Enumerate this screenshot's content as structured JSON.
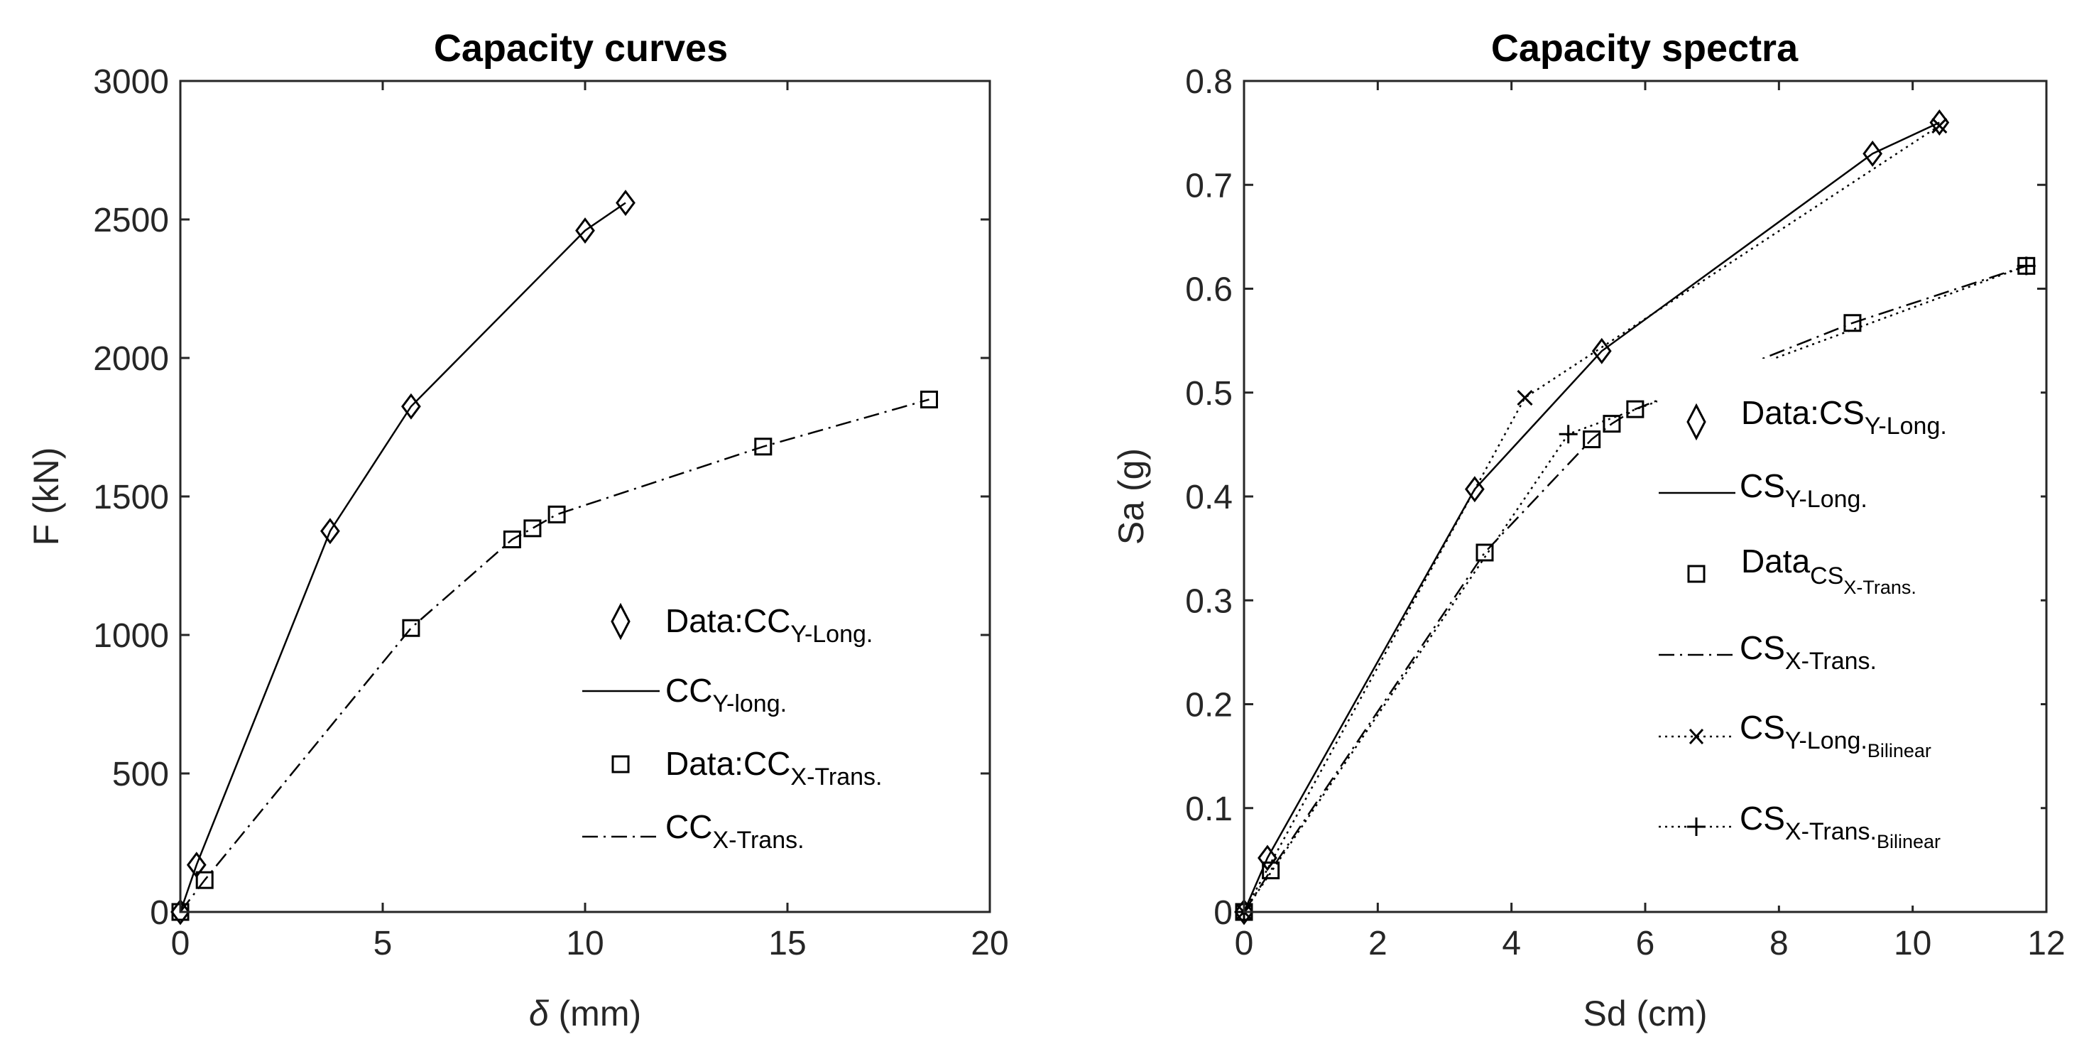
{
  "chart_data": [
    {
      "type": "line",
      "title": "Capacity curves",
      "xlabel_symbol": "δ",
      "xlabel": " (mm)",
      "ylabel": "F (kN)",
      "xlim": [
        0,
        20
      ],
      "ylim": [
        0,
        3000
      ],
      "xticks": [
        0,
        5,
        10,
        15,
        20
      ],
      "yticks": [
        0,
        500,
        1000,
        1500,
        2000,
        2500,
        3000
      ],
      "legend_position": "lower-right",
      "series": [
        {
          "name": "Data:CC Y-Long.",
          "style": "marker-diamond",
          "x": [
            0,
            0.4,
            3.7,
            5.7,
            10.0,
            11.0
          ],
          "y": [
            0,
            170,
            1375,
            1825,
            2460,
            2560
          ]
        },
        {
          "name": "CC Y-long.",
          "style": "solid",
          "x": [
            0,
            0.4,
            3.7,
            5.7,
            10.0,
            11.0
          ],
          "y": [
            0,
            170,
            1375,
            1825,
            2460,
            2560
          ]
        },
        {
          "name": "Data:CC X-Trans.",
          "style": "marker-square",
          "x": [
            0,
            0.6,
            5.7,
            8.2,
            8.7,
            9.3,
            14.4,
            18.5
          ],
          "y": [
            0,
            115,
            1025,
            1345,
            1385,
            1435,
            1680,
            1850
          ]
        },
        {
          "name": "CC X-Trans.",
          "style": "dashdot",
          "x": [
            0,
            0.6,
            5.7,
            8.2,
            8.7,
            9.3,
            14.4,
            18.5
          ],
          "y": [
            0,
            115,
            1025,
            1345,
            1385,
            1435,
            1680,
            1850
          ]
        }
      ],
      "legend": [
        {
          "main": "Data:CC",
          "sub": "Y-Long."
        },
        {
          "main": "CC",
          "sub": "Y-long."
        },
        {
          "main": "Data:CC",
          "sub": "X-Trans."
        },
        {
          "main": "CC",
          "sub": "X-Trans."
        }
      ]
    },
    {
      "type": "line",
      "title": "Capacity spectra",
      "xlabel": "Sd (cm)",
      "ylabel": "Sa (g)",
      "xlim": [
        0,
        12
      ],
      "ylim": [
        0,
        0.8
      ],
      "xticks": [
        0,
        2,
        4,
        6,
        8,
        10,
        12
      ],
      "yticks": [
        0,
        0.1,
        0.2,
        0.3,
        0.4,
        0.5,
        0.6,
        0.7,
        0.8
      ],
      "legend_position": "lower-right",
      "series": [
        {
          "name": "Data:CS Y-Long.",
          "style": "marker-diamond",
          "x": [
            0,
            0.35,
            3.45,
            5.35,
            9.4,
            10.4
          ],
          "y": [
            0,
            0.052,
            0.407,
            0.54,
            0.73,
            0.76
          ]
        },
        {
          "name": "CS Y-Long.",
          "style": "solid",
          "x": [
            0,
            0.35,
            3.45,
            5.35,
            9.4,
            10.4
          ],
          "y": [
            0,
            0.052,
            0.407,
            0.54,
            0.73,
            0.76
          ]
        },
        {
          "name": "Data CS X-Trans.",
          "style": "marker-square",
          "x": [
            0,
            0.4,
            3.6,
            5.2,
            5.5,
            5.85,
            9.1,
            11.7
          ],
          "y": [
            0,
            0.04,
            0.346,
            0.455,
            0.47,
            0.484,
            0.567,
            0.622
          ]
        },
        {
          "name": "CS X-Trans.",
          "style": "dashdot",
          "x": [
            0,
            0.4,
            3.6,
            5.2,
            5.5,
            5.85,
            9.1,
            11.7
          ],
          "y": [
            0,
            0.04,
            0.346,
            0.455,
            0.47,
            0.484,
            0.567,
            0.622
          ]
        },
        {
          "name": "CS Y-Long. Bilinear",
          "style": "dotted-x",
          "x": [
            0,
            4.2,
            10.4
          ],
          "y": [
            0,
            0.495,
            0.757
          ]
        },
        {
          "name": "CS X-Trans. Bilinear",
          "style": "dotted-plus",
          "x": [
            0,
            4.85,
            11.7
          ],
          "y": [
            0,
            0.46,
            0.622
          ]
        }
      ],
      "legend": [
        {
          "main": "Data:CS",
          "sub": "Y-Long.",
          "subsub": ""
        },
        {
          "main": "CS",
          "sub": "Y-Long.",
          "subsub": ""
        },
        {
          "main": "Data",
          "sub": "CS",
          "subsub": "X-Trans."
        },
        {
          "main": "CS",
          "sub": "X-Trans.",
          "subsub": ""
        },
        {
          "main": "CS",
          "sub": "Y-Long.",
          "subsub": "Bilinear"
        },
        {
          "main": "CS",
          "sub": "X-Trans.",
          "subsub": "Bilinear"
        }
      ]
    }
  ]
}
